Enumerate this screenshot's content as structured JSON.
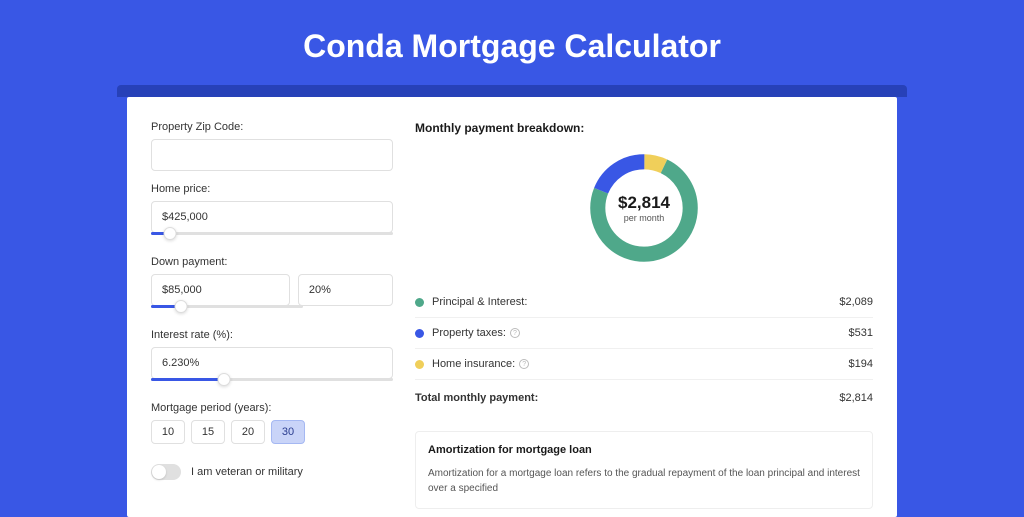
{
  "title": "Conda Mortgage Calculator",
  "colors": {
    "page_bg": "#3957e5",
    "accent": "#3957e5",
    "card_bg": "#ffffff"
  },
  "form": {
    "zip": {
      "label": "Property Zip Code:",
      "value": ""
    },
    "home_price": {
      "label": "Home price:",
      "value": "$425,000",
      "slider_pct": 8
    },
    "down_payment": {
      "label": "Down payment:",
      "value": "$85,000",
      "pct_value": "20%",
      "slider_pct": 20
    },
    "interest_rate": {
      "label": "Interest rate (%):",
      "value": "6.230%",
      "slider_pct": 30
    },
    "period": {
      "label": "Mortgage period (years):",
      "options": [
        "10",
        "15",
        "20",
        "30"
      ],
      "selected_index": 3
    },
    "veteran": {
      "label": "I am veteran or military",
      "value": false
    }
  },
  "breakdown": {
    "title": "Monthly payment breakdown:",
    "center_amount": "$2,814",
    "center_sub": "per month",
    "donut": {
      "segments": [
        {
          "label": "Principal & Interest:",
          "value": "$2,089",
          "color": "#4fa88a",
          "pct": 74,
          "has_info": false
        },
        {
          "label": "Property taxes:",
          "value": "$531",
          "color": "#3957e5",
          "pct": 19,
          "has_info": true
        },
        {
          "label": "Home insurance:",
          "value": "$194",
          "color": "#f0cf5a",
          "pct": 7,
          "has_info": true
        }
      ],
      "ring_width": 16
    },
    "total": {
      "label": "Total monthly payment:",
      "value": "$2,814"
    }
  },
  "amortization": {
    "title": "Amortization for mortgage loan",
    "text": "Amortization for a mortgage loan refers to the gradual repayment of the loan principal and interest over a specified"
  }
}
